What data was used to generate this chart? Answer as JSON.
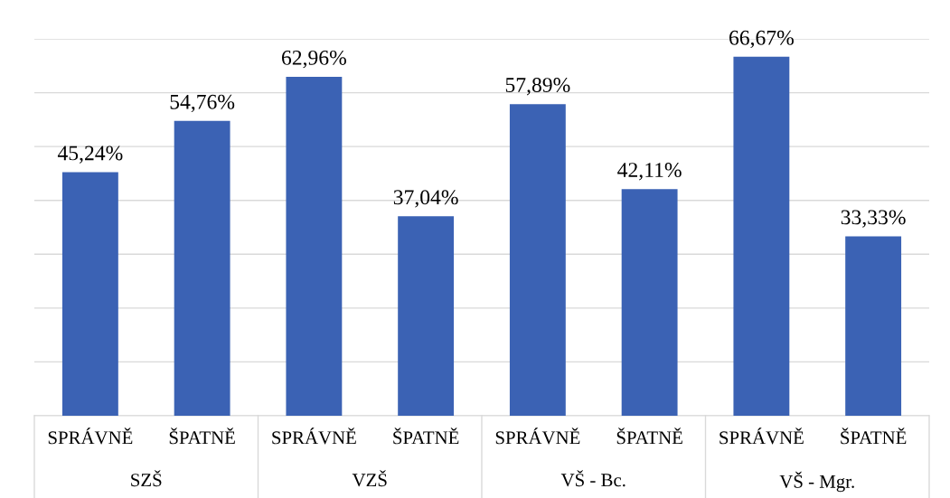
{
  "chart_data": {
    "type": "bar",
    "categories": [
      "SPRÁVNĚ",
      "ŠPATNĚ",
      "SPRÁVNĚ",
      "ŠPATNĚ",
      "SPRÁVNĚ",
      "ŠPATNĚ",
      "SPRÁVNĚ",
      "ŠPATNĚ"
    ],
    "values": [
      45.24,
      54.76,
      62.96,
      37.04,
      57.89,
      42.11,
      66.67,
      33.33
    ],
    "value_labels": [
      "45,24%",
      "54,76%",
      "62,96%",
      "37,04%",
      "57,89%",
      "42,11%",
      "66,67%",
      "33,33%"
    ],
    "color": "#3b62b4",
    "annotations": [
      "SZŠ",
      "VZŠ",
      "VŠ - Bc.",
      "VŠ - Mgr."
    ],
    "ylim": [
      0,
      70
    ],
    "yticks": [
      {
        "value": 0,
        "label": null
      },
      {
        "value": 10,
        "label": null
      },
      {
        "value": 20,
        "label": null
      },
      {
        "value": 30,
        "label": null
      },
      {
        "value": 40,
        "label": null
      },
      {
        "value": 50,
        "label": null
      },
      {
        "value": 60,
        "label": null
      },
      {
        "value": 70,
        "label": null
      }
    ],
    "tick_labels": "x",
    "grid": "y",
    "legend": false
  }
}
